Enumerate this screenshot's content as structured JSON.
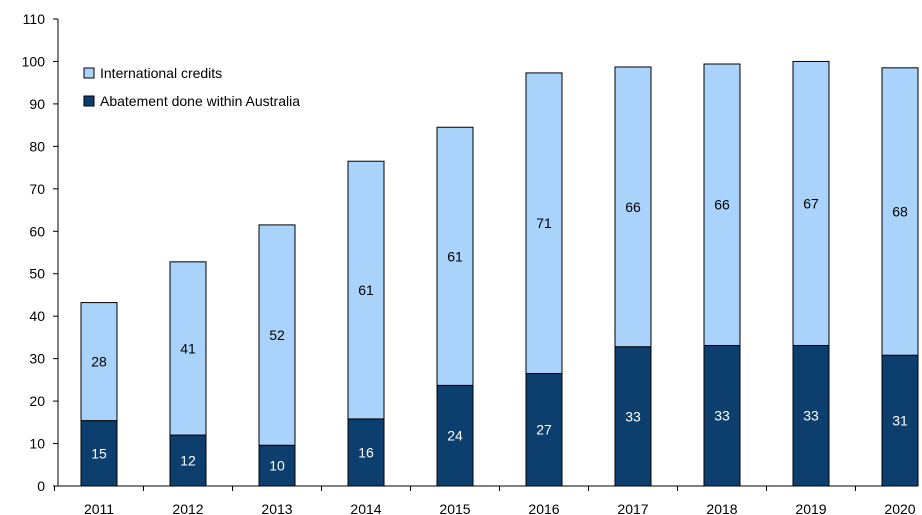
{
  "chart_data": {
    "type": "bar",
    "stacked": true,
    "categories": [
      "2011",
      "2012",
      "2013",
      "2014",
      "2015",
      "2016",
      "2017",
      "2018",
      "2019",
      "2020"
    ],
    "series": [
      {
        "name": "Abatement done within Australia",
        "color": "#0d3f6e",
        "label_color": "#ffffff",
        "values": [
          15.4,
          12.0,
          9.6,
          15.8,
          23.7,
          26.5,
          32.8,
          33.1,
          33.1,
          30.8
        ],
        "labels": [
          "15",
          "12",
          "10",
          "16",
          "24",
          "27",
          "33",
          "33",
          "33",
          "31"
        ]
      },
      {
        "name": "International credits",
        "color": "#a9d3fb",
        "label_color": "#000000",
        "values": [
          27.8,
          40.8,
          51.9,
          60.7,
          60.8,
          70.8,
          65.9,
          66.3,
          66.9,
          67.7
        ],
        "labels": [
          "28",
          "41",
          "52",
          "61",
          "61",
          "71",
          "66",
          "66",
          "67",
          "68"
        ]
      }
    ],
    "ylim": [
      0,
      110
    ],
    "yticks": [
      0,
      10,
      20,
      30,
      40,
      50,
      60,
      70,
      80,
      90,
      100,
      110
    ],
    "title": "",
    "xlabel": "",
    "ylabel": "",
    "grid": false,
    "legend_position": "top-left",
    "legend_order": [
      "International credits",
      "Abatement done within Australia"
    ]
  }
}
